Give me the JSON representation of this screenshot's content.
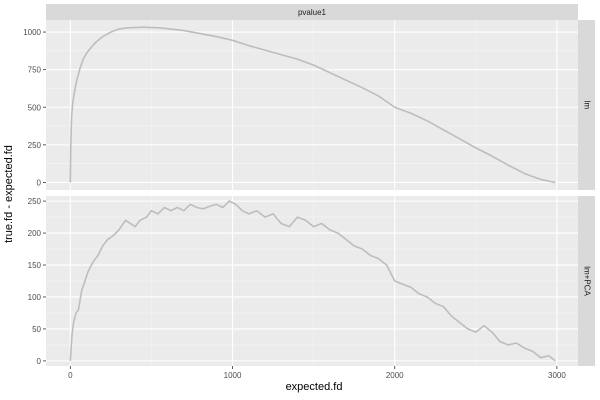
{
  "chart_data": {
    "type": "line",
    "xlabel": "expected.fd",
    "ylabel": "true.fd - expected.fd",
    "column_strip": "pvalue1",
    "x_ticks": [
      0,
      1000,
      2000,
      3000
    ],
    "xlim": [
      -150,
      3130
    ],
    "line_color": "#bdbdbd",
    "panel_bg": "#ebebeb",
    "strip_bg": "#d9d9d9",
    "panels": [
      {
        "strip": "lm",
        "ylim": [
          -50,
          1080
        ],
        "y_ticks": [
          0,
          250,
          500,
          750,
          1000
        ],
        "series": [
          {
            "x": [
              0,
              3,
              8,
              15,
              25,
              40,
              60,
              80,
              100,
              130,
              160,
              200,
              250,
              300,
              350,
              400,
              450,
              500,
              550,
              600,
              700,
              800,
              900,
              1000,
              1100,
              1200,
              1300,
              1400,
              1500,
              1600,
              1700,
              1800,
              1900,
              2000,
              2100,
              2200,
              2300,
              2400,
              2500,
              2600,
              2700,
              2800,
              2900,
              2990
            ],
            "y": [
              0,
              270,
              440,
              530,
              600,
              680,
              760,
              820,
              860,
              900,
              935,
              970,
              1000,
              1020,
              1028,
              1030,
              1032,
              1030,
              1028,
              1022,
              1010,
              990,
              970,
              945,
              910,
              880,
              850,
              820,
              780,
              730,
              680,
              630,
              575,
              500,
              460,
              410,
              350,
              290,
              230,
              175,
              115,
              60,
              20,
              0
            ]
          }
        ]
      },
      {
        "strip": "lm+PCA",
        "ylim": [
          -8,
          258
        ],
        "y_ticks": [
          0,
          50,
          100,
          150,
          200,
          250
        ],
        "series": [
          {
            "x": [
              0,
              5,
              10,
              20,
              35,
              50,
              70,
              90,
              110,
              140,
              170,
              200,
              230,
              260,
              300,
              340,
              370,
              400,
              430,
              470,
              500,
              540,
              580,
              620,
              660,
              700,
              740,
              780,
              820,
              860,
              900,
              940,
              980,
              1020,
              1060,
              1100,
              1150,
              1200,
              1250,
              1300,
              1350,
              1400,
              1450,
              1500,
              1550,
              1600,
              1650,
              1700,
              1750,
              1800,
              1850,
              1900,
              1950,
              2000,
              2050,
              2100,
              2150,
              2200,
              2250,
              2300,
              2350,
              2400,
              2450,
              2500,
              2550,
              2600,
              2650,
              2700,
              2750,
              2800,
              2850,
              2900,
              2950,
              2990
            ],
            "y": [
              0,
              20,
              40,
              60,
              75,
              80,
              110,
              125,
              140,
              155,
              165,
              180,
              190,
              195,
              205,
              220,
              215,
              210,
              220,
              225,
              235,
              230,
              240,
              235,
              240,
              235,
              245,
              240,
              238,
              242,
              245,
              240,
              250,
              245,
              235,
              230,
              235,
              225,
              230,
              215,
              210,
              225,
              220,
              210,
              215,
              205,
              200,
              190,
              180,
              175,
              165,
              160,
              150,
              125,
              120,
              115,
              105,
              100,
              90,
              85,
              70,
              60,
              50,
              45,
              55,
              45,
              30,
              25,
              28,
              20,
              15,
              5,
              8,
              0
            ]
          }
        ]
      }
    ]
  }
}
